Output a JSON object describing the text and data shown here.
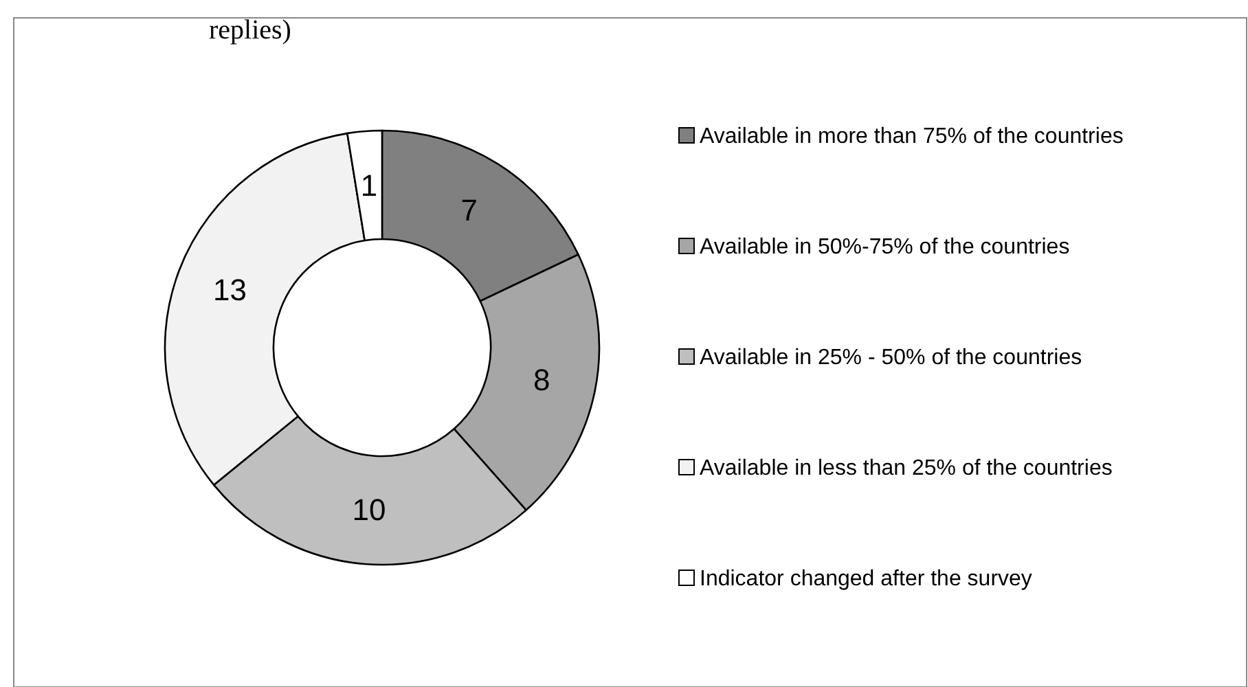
{
  "chart_data": {
    "type": "donut",
    "title": "replies)",
    "categories": [
      "Available in more than 75% of the countries",
      "Available in 50%-75% of the countries",
      "Available in 25% - 50% of the countries",
      "Available in less than 25% of the countries",
      "Indicator changed after the survey"
    ],
    "values": [
      7,
      8,
      10,
      13,
      1
    ],
    "colors": [
      "#808080",
      "#a6a6a6",
      "#bfbfbf",
      "#f2f2f2",
      "#ffffff"
    ],
    "data_labels": true,
    "legend": "right"
  }
}
